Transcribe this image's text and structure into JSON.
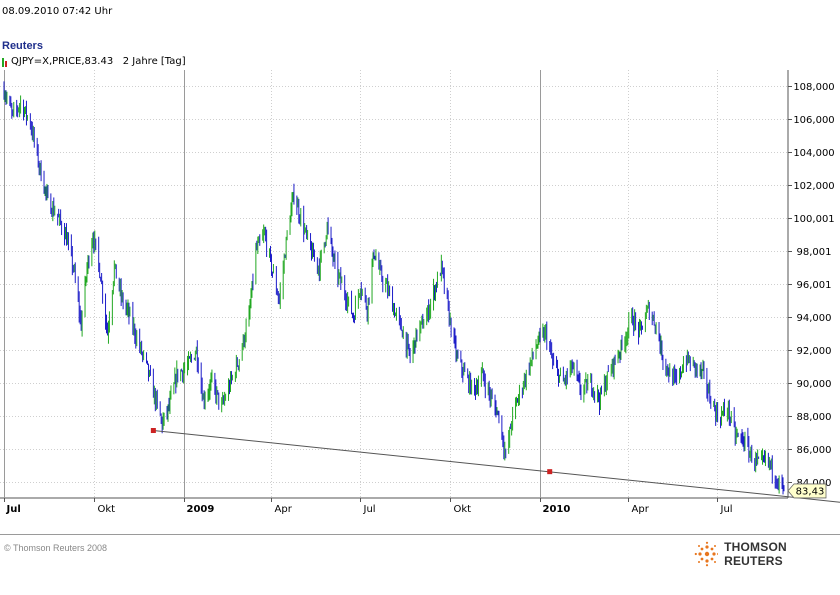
{
  "header": {
    "datetime": "08.09.2010  07:42 Uhr",
    "source": "Reuters",
    "legend_text": "QJPY=X,PRICE,83.43   2 Jahre [Tag]"
  },
  "colors": {
    "up": "#22a822",
    "down": "#1c1cc8",
    "trendline": "#555555",
    "grid": "#cfcfcf",
    "marker": "#cc2222",
    "last_badge": "#ffffcc"
  },
  "footer": {
    "copyright": "© Thomson Reuters 2008",
    "brand": "THOMSON REUTERS"
  },
  "chart_data": {
    "type": "line",
    "instrument": "QJPY=X",
    "ylim": [
      83,
      109
    ],
    "yticks": [
      84,
      86,
      88,
      90,
      92,
      94,
      96,
      98,
      100,
      102,
      104,
      106,
      108
    ],
    "ytick_labels": [
      "84,000",
      "86,000",
      "88,000",
      "90,000",
      "92,000",
      "94,000",
      "96,001",
      "98,001",
      "100,001",
      "102,000",
      "104,000",
      "106,000",
      "108,000"
    ],
    "x_range": [
      "2008-07-01",
      "2010-09-08"
    ],
    "x_ticks": [
      {
        "date": "2008-07-01",
        "label": "Jul",
        "bold": true
      },
      {
        "date": "2008-10-01",
        "label": "Okt",
        "bold": false
      },
      {
        "date": "2009-01-01",
        "label": "2009",
        "bold": true
      },
      {
        "date": "2009-04-01",
        "label": "Apr",
        "bold": false
      },
      {
        "date": "2009-07-01",
        "label": "Jul",
        "bold": false
      },
      {
        "date": "2009-10-01",
        "label": "Okt",
        "bold": false
      },
      {
        "date": "2010-01-01",
        "label": "2010",
        "bold": true
      },
      {
        "date": "2010-04-01",
        "label": "Apr",
        "bold": false
      },
      {
        "date": "2010-07-01",
        "label": "Jul",
        "bold": false
      }
    ],
    "series": [
      {
        "points": [
          [
            "2008-07-01",
            107.8
          ],
          [
            "2008-07-10",
            106.2
          ],
          [
            "2008-07-18",
            107.0
          ],
          [
            "2008-07-28",
            105.8
          ],
          [
            "2008-08-06",
            103.2
          ],
          [
            "2008-08-15",
            101.0
          ],
          [
            "2008-08-24",
            100.2
          ],
          [
            "2008-09-02",
            99.0
          ],
          [
            "2008-09-10",
            97.0
          ],
          [
            "2008-09-18",
            93.5
          ],
          [
            "2008-09-24",
            97.0
          ],
          [
            "2008-09-30",
            99.0
          ],
          [
            "2008-10-08",
            96.5
          ],
          [
            "2008-10-15",
            93.0
          ],
          [
            "2008-10-22",
            97.0
          ],
          [
            "2008-10-30",
            95.0
          ],
          [
            "2008-11-07",
            94.0
          ],
          [
            "2008-11-15",
            92.5
          ],
          [
            "2008-11-24",
            91.0
          ],
          [
            "2008-12-03",
            89.0
          ],
          [
            "2008-12-10",
            87.5
          ],
          [
            "2008-12-17",
            88.5
          ],
          [
            "2008-12-25",
            90.5
          ],
          [
            "2009-01-05",
            91.0
          ],
          [
            "2009-01-14",
            92.0
          ],
          [
            "2009-01-21",
            89.0
          ],
          [
            "2009-01-30",
            90.0
          ],
          [
            "2009-02-09",
            88.5
          ],
          [
            "2009-02-18",
            90.0
          ],
          [
            "2009-02-27",
            91.5
          ],
          [
            "2009-03-09",
            94.0
          ],
          [
            "2009-03-16",
            98.0
          ],
          [
            "2009-03-25",
            99.0
          ],
          [
            "2009-04-01",
            97.0
          ],
          [
            "2009-04-09",
            95.0
          ],
          [
            "2009-04-17",
            99.0
          ],
          [
            "2009-04-24",
            101.5
          ],
          [
            "2009-05-01",
            100.0
          ],
          [
            "2009-05-11",
            98.0
          ],
          [
            "2009-05-20",
            97.0
          ],
          [
            "2009-05-28",
            99.5
          ],
          [
            "2009-06-05",
            97.0
          ],
          [
            "2009-06-15",
            95.5
          ],
          [
            "2009-06-24",
            94.0
          ],
          [
            "2009-07-01",
            96.0
          ],
          [
            "2009-07-08",
            94.5
          ],
          [
            "2009-07-15",
            98.0
          ],
          [
            "2009-07-22",
            96.5
          ],
          [
            "2009-07-30",
            95.5
          ],
          [
            "2009-08-07",
            94.0
          ],
          [
            "2009-08-14",
            93.0
          ],
          [
            "2009-08-21",
            91.5
          ],
          [
            "2009-08-28",
            93.0
          ],
          [
            "2009-09-07",
            94.0
          ],
          [
            "2009-09-14",
            95.5
          ],
          [
            "2009-09-22",
            97.0
          ],
          [
            "2009-09-30",
            94.0
          ],
          [
            "2009-10-08",
            91.5
          ],
          [
            "2009-10-16",
            90.5
          ],
          [
            "2009-10-25",
            89.5
          ],
          [
            "2009-11-03",
            90.5
          ],
          [
            "2009-11-12",
            89.0
          ],
          [
            "2009-11-20",
            88.0
          ],
          [
            "2009-11-27",
            85.5
          ],
          [
            "2009-12-04",
            88.0
          ],
          [
            "2009-12-12",
            89.5
          ],
          [
            "2009-12-21",
            91.0
          ],
          [
            "2009-12-30",
            92.5
          ],
          [
            "2010-01-07",
            93.0
          ],
          [
            "2010-01-15",
            91.0
          ],
          [
            "2010-01-25",
            90.0
          ],
          [
            "2010-02-03",
            91.0
          ],
          [
            "2010-02-12",
            89.5
          ],
          [
            "2010-02-22",
            90.0
          ],
          [
            "2010-03-03",
            89.0
          ],
          [
            "2010-03-12",
            90.5
          ],
          [
            "2010-03-20",
            91.5
          ],
          [
            "2010-03-28",
            92.5
          ],
          [
            "2010-04-05",
            94.0
          ],
          [
            "2010-04-13",
            93.0
          ],
          [
            "2010-04-22",
            94.5
          ],
          [
            "2010-04-30",
            93.5
          ],
          [
            "2010-05-07",
            91.5
          ],
          [
            "2010-05-14",
            90.5
          ],
          [
            "2010-05-21",
            90.0
          ],
          [
            "2010-05-30",
            91.5
          ],
          [
            "2010-06-08",
            91.0
          ],
          [
            "2010-06-17",
            90.5
          ],
          [
            "2010-06-25",
            89.0
          ],
          [
            "2010-07-03",
            87.8
          ],
          [
            "2010-07-12",
            88.5
          ],
          [
            "2010-07-20",
            86.8
          ],
          [
            "2010-07-29",
            86.5
          ],
          [
            "2010-08-06",
            85.5
          ],
          [
            "2010-08-14",
            85.0
          ],
          [
            "2010-08-22",
            85.3
          ],
          [
            "2010-08-30",
            84.4
          ],
          [
            "2010-09-08",
            83.43
          ]
        ]
      }
    ],
    "trendline": {
      "from": [
        "2008-12-01",
        87.1
      ],
      "to": [
        "2010-09-08",
        83.1
      ]
    },
    "markers": [
      {
        "date": "2008-12-01",
        "value": 87.1
      },
      {
        "date": "2010-01-11",
        "value": 84.6
      }
    ],
    "last_value_label": "83,43",
    "last_value": 83.43
  }
}
